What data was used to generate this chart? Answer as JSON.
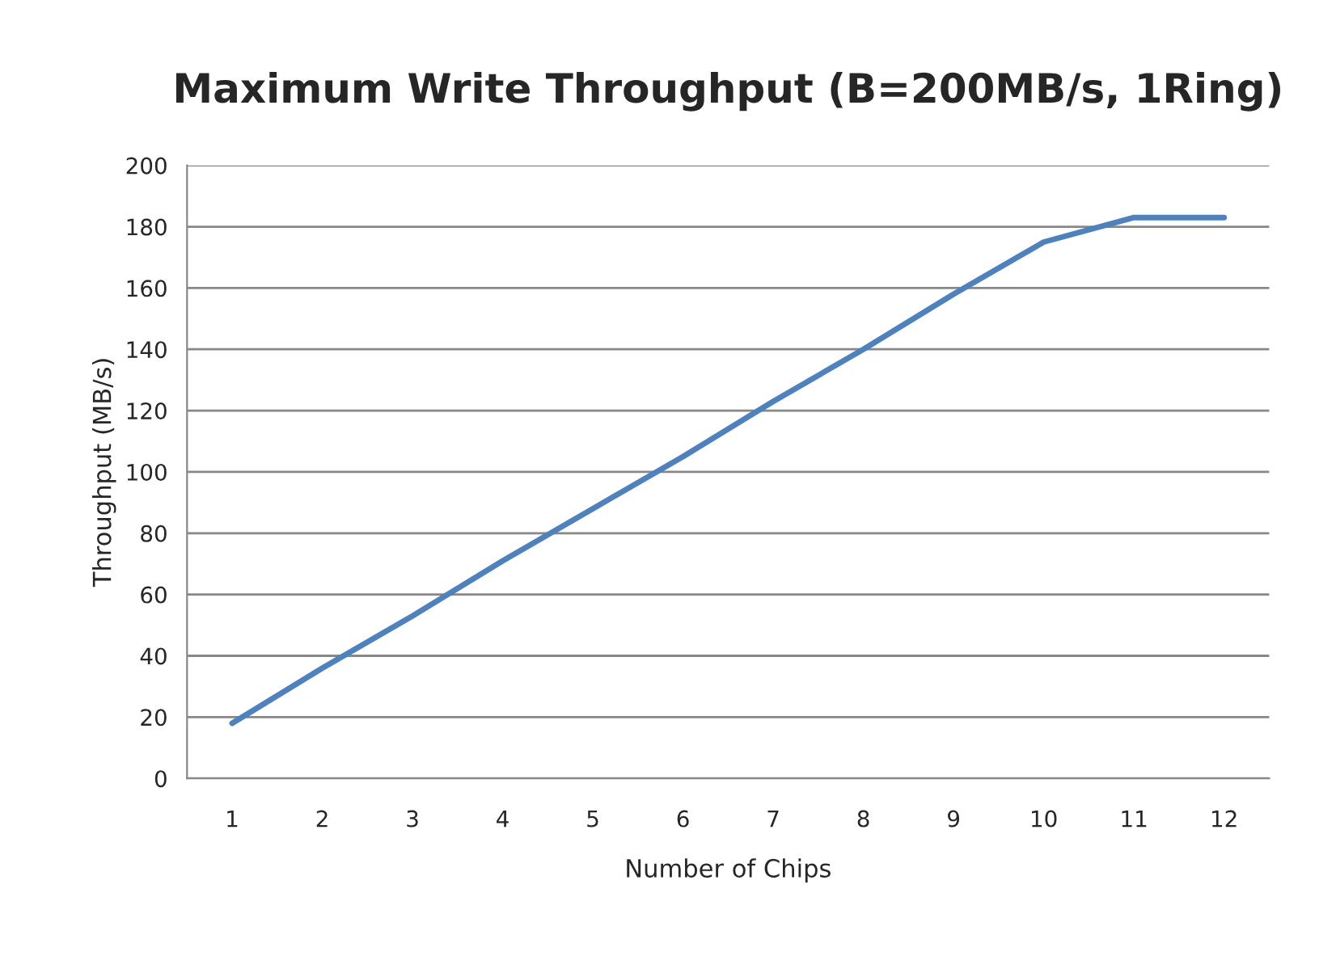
{
  "chart_data": {
    "type": "line",
    "title": "Maximum Write Throughput (B=200MB/s, 1Ring)",
    "xlabel": "Number of Chips",
    "ylabel": "Throughput (MB/s)",
    "categories": [
      "1",
      "2",
      "3",
      "4",
      "5",
      "6",
      "7",
      "8",
      "9",
      "10",
      "11",
      "12"
    ],
    "series": [
      {
        "color": "#4f81bd",
        "values": [
          18,
          36,
          53,
          71,
          88,
          105,
          123,
          140,
          158,
          175,
          183,
          183
        ]
      }
    ],
    "ylim": [
      0,
      200
    ],
    "yticks": [
      0,
      20,
      40,
      60,
      80,
      100,
      120,
      140,
      160,
      180,
      200
    ],
    "grid": "y",
    "legend": false,
    "marker": "none",
    "line_style": "solid"
  }
}
